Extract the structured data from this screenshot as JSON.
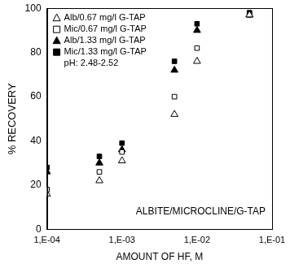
{
  "chart_data": {
    "type": "scatter",
    "x_label": "AMOUNT OF HF, M",
    "y_label": "% RECOVERY",
    "annotations": [
      "pH: 2.48-2.52",
      "ALBITE/MICROCLINE/G-TAP"
    ],
    "x": [
      0.0001,
      0.0005,
      0.001,
      0.005,
      0.01,
      0.05
    ],
    "series": [
      {
        "name": "Alb/0.67 mg/l G-TAP",
        "color": "#000000",
        "marker": "triangle-open",
        "values": [
          16,
          22,
          31,
          52,
          76,
          97
        ]
      },
      {
        "name": "Mic/0.67 mg/l G-TAP",
        "color": "#000000",
        "marker": "square-open",
        "values": [
          18,
          26,
          35,
          60,
          82,
          97
        ]
      },
      {
        "name": "Alb/1.33 mg/l G-TAP",
        "color": "#000000",
        "marker": "triangle",
        "values": [
          26,
          30,
          36,
          72,
          90,
          97
        ]
      },
      {
        "name": "Mic/1.33 mg/l G-TAP",
        "color": "#000000",
        "marker": "square",
        "values": [
          28,
          33,
          39,
          76,
          93,
          98
        ]
      }
    ],
    "log": "x",
    "xlim": [
      0.0001,
      0.1
    ],
    "xticks": [
      {
        "value": 0.0001,
        "label": "1,E-04"
      },
      {
        "value": 0.001,
        "label": "1,E-03"
      },
      {
        "value": 0.01,
        "label": "1,E-02"
      },
      {
        "value": 0.1,
        "label": "1,E-01"
      }
    ],
    "ylim": [
      0,
      100
    ],
    "yticks": [
      0,
      20,
      40,
      60,
      80,
      100
    ],
    "grid": false,
    "legend": "upper left"
  }
}
